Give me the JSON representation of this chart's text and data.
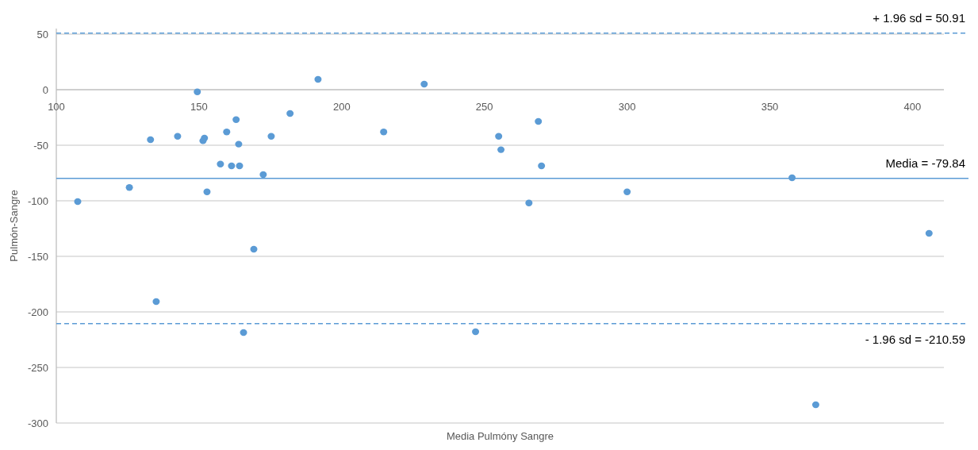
{
  "chart_data": {
    "type": "scatter",
    "xlabel": "Media Pulmóny Sangre",
    "ylabel": "Pulmón-Sangre",
    "xlim": [
      100,
      411
    ],
    "xticks": [
      100,
      150,
      200,
      250,
      300,
      350,
      400
    ],
    "ylim": [
      -300,
      55
    ],
    "yticks": [
      -300,
      -250,
      -200,
      -150,
      -100,
      -50,
      0,
      50
    ],
    "grid": "y",
    "marker": "circle",
    "series": [
      {
        "color": "#5b9bd5",
        "x": [
          107.5,
          125.6,
          133,
          135,
          142.5,
          149.4,
          151.4,
          151.9,
          152.8,
          157.5,
          159.7,
          161.4,
          163,
          163.9,
          164.2,
          165.6,
          169.2,
          172.5,
          175.3,
          181.9,
          191.7,
          214.7,
          228.9,
          246.9,
          255,
          255.8,
          265.6,
          268.9,
          270,
          300,
          357.8,
          366.1,
          405.8
        ],
        "values": [
          -100.7,
          -88,
          -45,
          -190.7,
          -42,
          -2,
          -46,
          -43.6,
          -92,
          -67,
          -38,
          -68.6,
          -27,
          -49,
          -68.6,
          -218.6,
          -143.6,
          -76.4,
          -42,
          -21.4,
          9.3,
          -38,
          5,
          -217.9,
          -42,
          -54,
          -102,
          -28.6,
          -68.6,
          -92,
          -79.3,
          -283.6,
          -129.3
        ]
      }
    ],
    "ref_lines": [
      {
        "axis": "y",
        "value": 50.91,
        "label": "+ 1.96 sd = 50.91",
        "color": "#5b9bd5",
        "line_style": "dashed"
      },
      {
        "axis": "y",
        "value": -79.84,
        "label": "Media = -79.84",
        "color": "#5b9bd5",
        "line_style": "solid"
      },
      {
        "axis": "y",
        "value": -210.59,
        "label": "- 1.96 sd = -210.59",
        "color": "#5b9bd5",
        "line_style": "dashed"
      }
    ]
  }
}
